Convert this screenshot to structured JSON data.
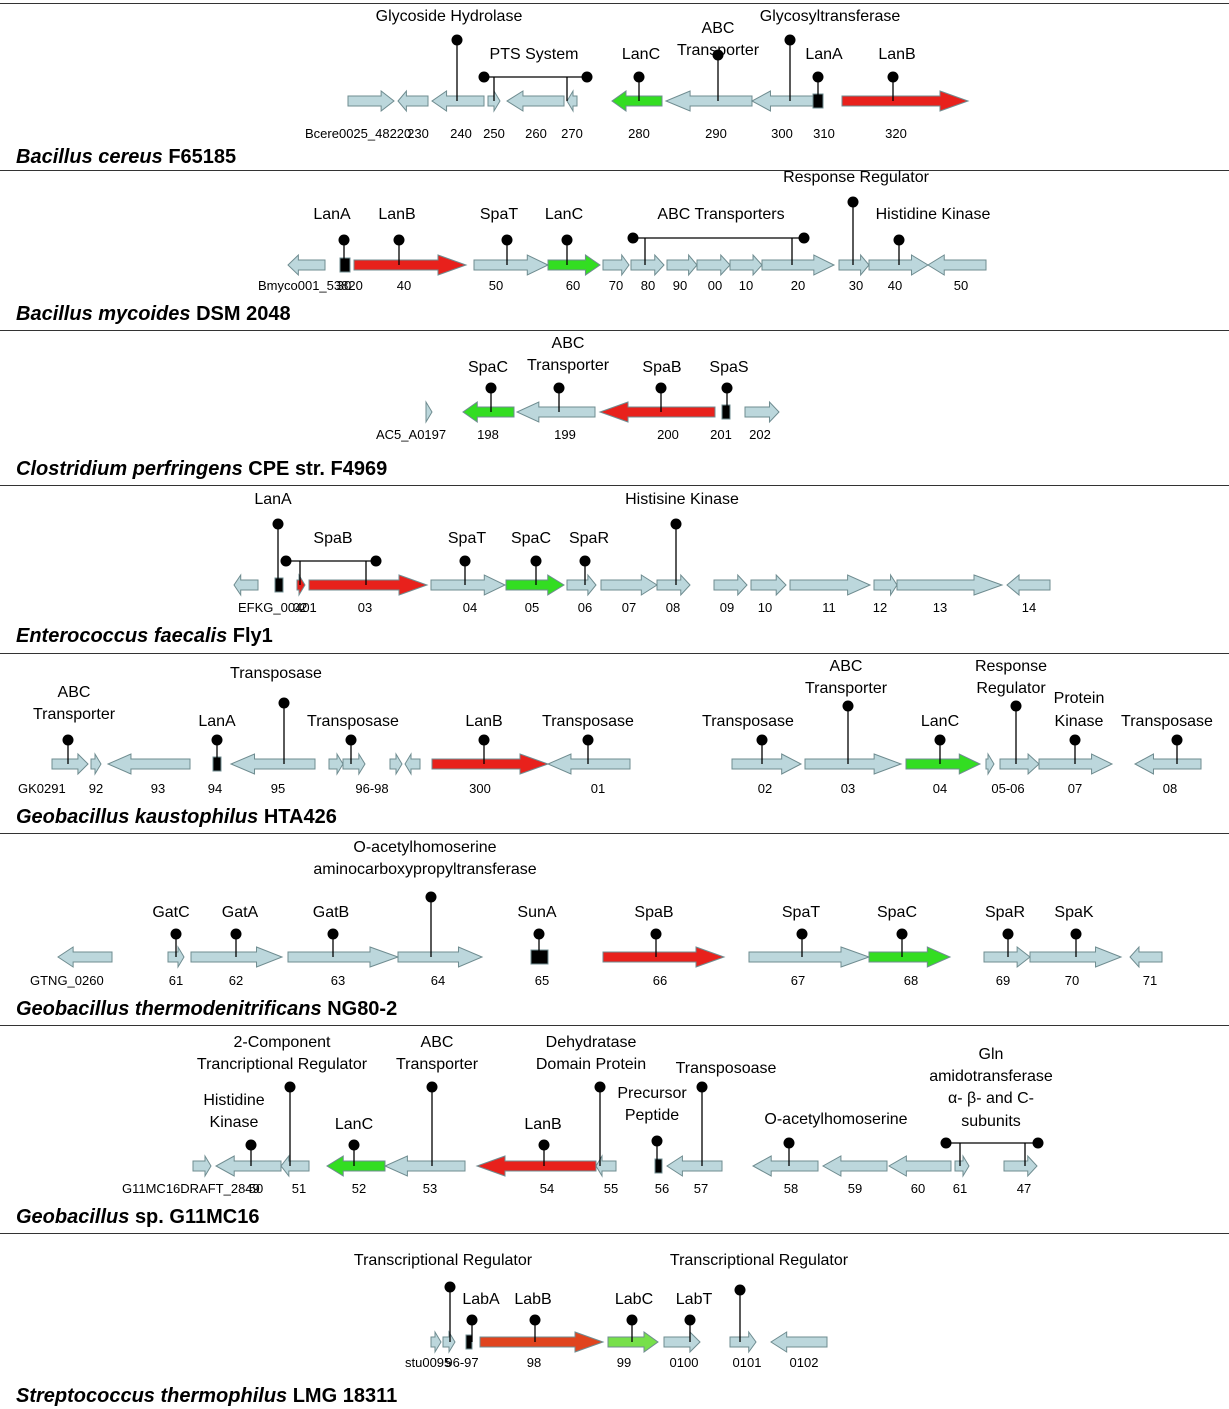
{
  "colors": {
    "default": "#bcd7dc",
    "lanB": "#e8211c",
    "lanC": "#33dd22",
    "small": "#000000",
    "labB": "#e0441e",
    "labC": "#77e04a",
    "pin": "#000000"
  },
  "panels": [
    {
      "organism": {
        "genus": "Bacillus cereus",
        "strain": "F65185"
      },
      "genes": [
        {
          "id": "g1",
          "dir": "r",
          "type": "default"
        },
        {
          "id": "g2",
          "dir": "l",
          "type": "default"
        },
        {
          "id": "g3",
          "dir": "l",
          "type": "default"
        },
        {
          "id": "g4",
          "dir": "r",
          "type": "default"
        },
        {
          "id": "g5",
          "dir": "l",
          "type": "default"
        },
        {
          "id": "g6",
          "dir": "l",
          "type": "default"
        },
        {
          "id": "g7",
          "dir": "l",
          "type": "lanC"
        },
        {
          "id": "g8",
          "dir": "l",
          "type": "default"
        },
        {
          "id": "g9",
          "dir": "l",
          "type": "default"
        },
        {
          "id": "g10",
          "dir": "r",
          "type": "small"
        },
        {
          "id": "g11",
          "dir": "r",
          "type": "lanB"
        }
      ],
      "numbers": [
        "Bcere0025_48220",
        "230",
        "240",
        "250",
        "260",
        "270",
        "280",
        "290",
        "300",
        "310",
        "320"
      ],
      "features": [
        "Glycoside Hydrolase",
        "PTS System",
        "LanC",
        "ABC\nTransporter",
        "Glycosyltransferase",
        "LanA",
        "LanB"
      ]
    },
    {
      "organism": {
        "genus": "Bacillus mycoides",
        "strain": "DSM 2048"
      },
      "genes": [
        {
          "id": "g1",
          "dir": "l",
          "type": "default"
        },
        {
          "id": "g2",
          "dir": "r",
          "type": "small"
        },
        {
          "id": "g3",
          "dir": "r",
          "type": "lanB"
        },
        {
          "id": "g4",
          "dir": "r",
          "type": "default"
        },
        {
          "id": "g5",
          "dir": "r",
          "type": "lanC"
        },
        {
          "id": "g6",
          "dir": "r",
          "type": "default"
        },
        {
          "id": "g7",
          "dir": "r",
          "type": "default"
        },
        {
          "id": "g8",
          "dir": "r",
          "type": "default"
        },
        {
          "id": "g9",
          "dir": "r",
          "type": "default"
        },
        {
          "id": "g10",
          "dir": "r",
          "type": "default"
        },
        {
          "id": "g11",
          "dir": "r",
          "type": "default"
        },
        {
          "id": "g12",
          "dir": "r",
          "type": "default"
        },
        {
          "id": "g13",
          "dir": "r",
          "type": "default"
        },
        {
          "id": "g14",
          "dir": "l",
          "type": "default"
        }
      ],
      "numbers": [
        "Bmyco001_53820",
        "30",
        "40",
        "50",
        "60",
        "70",
        "80",
        "90",
        "00",
        "10",
        "20",
        "30",
        "40",
        "50"
      ],
      "features": [
        "LanA",
        "LanB",
        "SpaT",
        "LanC",
        "ABC Transporters",
        "Response Regulator",
        "Histidine Kinase"
      ]
    },
    {
      "organism": {
        "genus": "Clostridium perfringens",
        "strain": "CPE str. F4969"
      },
      "genes": [
        {
          "id": "g1",
          "dir": "r",
          "type": "default"
        },
        {
          "id": "g2",
          "dir": "l",
          "type": "lanC"
        },
        {
          "id": "g3",
          "dir": "l",
          "type": "default"
        },
        {
          "id": "g4",
          "dir": "l",
          "type": "lanB"
        },
        {
          "id": "g5",
          "dir": "r",
          "type": "small"
        },
        {
          "id": "g6",
          "dir": "r",
          "type": "default"
        }
      ],
      "numbers": [
        "AC5_A0197",
        "198",
        "199",
        "200",
        "201",
        "202"
      ],
      "features": [
        "SpaC",
        "ABC\nTransporter",
        "SpaB",
        "SpaS"
      ]
    },
    {
      "organism": {
        "genus": "Enterococcus faecalis",
        "strain": "Fly1"
      },
      "genes": [
        {
          "id": "g1",
          "dir": "l",
          "type": "default"
        },
        {
          "id": "g2",
          "dir": "r",
          "type": "small"
        },
        {
          "id": "g2b",
          "dir": "r",
          "type": "lanB"
        },
        {
          "id": "g3",
          "dir": "r",
          "type": "lanB"
        },
        {
          "id": "g4",
          "dir": "r",
          "type": "default"
        },
        {
          "id": "g5",
          "dir": "r",
          "type": "lanC"
        },
        {
          "id": "g6",
          "dir": "r",
          "type": "default"
        },
        {
          "id": "g7",
          "dir": "r",
          "type": "default"
        },
        {
          "id": "g8",
          "dir": "r",
          "type": "default"
        },
        {
          "id": "g9",
          "dir": "r",
          "type": "default"
        },
        {
          "id": "g10",
          "dir": "r",
          "type": "default"
        },
        {
          "id": "g11",
          "dir": "r",
          "type": "default"
        },
        {
          "id": "g12",
          "dir": "r",
          "type": "default"
        },
        {
          "id": "g13",
          "dir": "r",
          "type": "default"
        },
        {
          "id": "g14",
          "dir": "l",
          "type": "default"
        }
      ],
      "numbers": [
        "EFKG_00401",
        "02",
        "03",
        "04",
        "05",
        "06",
        "07",
        "08",
        "09",
        "10",
        "11",
        "12",
        "13",
        "14"
      ],
      "features": [
        "LanA",
        "SpaB",
        "SpaT",
        "SpaC",
        "SpaR",
        "Histisine Kinase"
      ]
    },
    {
      "organism": {
        "genus": "Geobacillus kaustophilus",
        "strain": "HTA426"
      },
      "genes": [
        {
          "id": "g1",
          "dir": "r",
          "type": "default"
        },
        {
          "id": "g2",
          "dir": "r",
          "type": "default"
        },
        {
          "id": "g3",
          "dir": "l",
          "type": "default"
        },
        {
          "id": "g4",
          "dir": "r",
          "type": "small"
        },
        {
          "id": "g5",
          "dir": "l",
          "type": "default"
        },
        {
          "id": "g6",
          "dir": "r",
          "type": "default"
        },
        {
          "id": "g7",
          "dir": "r",
          "type": "default"
        },
        {
          "id": "g8",
          "dir": "r",
          "type": "default"
        },
        {
          "id": "g9",
          "dir": "l",
          "type": "default"
        },
        {
          "id": "g10",
          "dir": "r",
          "type": "lanB"
        },
        {
          "id": "g11",
          "dir": "l",
          "type": "default"
        },
        {
          "id": "g12",
          "dir": "r",
          "type": "default"
        },
        {
          "id": "g13",
          "dir": "r",
          "type": "default"
        },
        {
          "id": "g14",
          "dir": "r",
          "type": "lanC"
        },
        {
          "id": "g15",
          "dir": "r",
          "type": "default"
        },
        {
          "id": "g16",
          "dir": "r",
          "type": "default"
        },
        {
          "id": "g17",
          "dir": "r",
          "type": "default"
        },
        {
          "id": "g18",
          "dir": "l",
          "type": "default"
        }
      ],
      "numbers": [
        "GK0291",
        "92",
        "93",
        "94",
        "95",
        "96-98",
        "300",
        "01",
        "02",
        "03",
        "04",
        "05-06",
        "07",
        "08"
      ],
      "features": [
        "ABC\nTransporter",
        "LanA",
        "Transposase",
        "Transposase",
        "LanB",
        "Transposase",
        "Transposase",
        "ABC\nTransporter",
        "LanC",
        "Response\nRegulator",
        "Protein\nKinase",
        "Transposase"
      ]
    },
    {
      "organism": {
        "genus": "Geobacillus thermodenitrificans",
        "strain": "NG80-2"
      },
      "genes": [
        {
          "id": "g1",
          "dir": "l",
          "type": "default"
        },
        {
          "id": "g2",
          "dir": "r",
          "type": "default"
        },
        {
          "id": "g3",
          "dir": "r",
          "type": "default"
        },
        {
          "id": "g4",
          "dir": "r",
          "type": "default"
        },
        {
          "id": "g5",
          "dir": "r",
          "type": "default"
        },
        {
          "id": "g6",
          "dir": "r",
          "type": "small"
        },
        {
          "id": "g7",
          "dir": "r",
          "type": "lanB"
        },
        {
          "id": "g8",
          "dir": "r",
          "type": "default"
        },
        {
          "id": "g9",
          "dir": "r",
          "type": "lanC"
        },
        {
          "id": "g10",
          "dir": "r",
          "type": "default"
        },
        {
          "id": "g11",
          "dir": "r",
          "type": "default"
        },
        {
          "id": "g12",
          "dir": "l",
          "type": "default"
        }
      ],
      "numbers": [
        "GTNG_0260",
        "61",
        "62",
        "63",
        "64",
        "65",
        "66",
        "67",
        "68",
        "69",
        "70",
        "71"
      ],
      "features": [
        "GatC",
        "GatA",
        "GatB",
        "O-acetylhomoserine\naminocarboxypropyltransferase",
        "SunA",
        "SpaB",
        "SpaT",
        "SpaC",
        "SpaR",
        "SpaK"
      ]
    },
    {
      "organism": {
        "genus": "Geobacillus",
        "strain": "sp. G11MC16"
      },
      "genes": [
        {
          "id": "g1",
          "dir": "r",
          "type": "default"
        },
        {
          "id": "g2",
          "dir": "l",
          "type": "default"
        },
        {
          "id": "g3",
          "dir": "l",
          "type": "default"
        },
        {
          "id": "g4",
          "dir": "l",
          "type": "lanC"
        },
        {
          "id": "g5",
          "dir": "l",
          "type": "default"
        },
        {
          "id": "g6",
          "dir": "l",
          "type": "lanB"
        },
        {
          "id": "g7",
          "dir": "l",
          "type": "default"
        },
        {
          "id": "g8",
          "dir": "r",
          "type": "small"
        },
        {
          "id": "g9",
          "dir": "l",
          "type": "default"
        },
        {
          "id": "g10",
          "dir": "l",
          "type": "default"
        },
        {
          "id": "g11",
          "dir": "l",
          "type": "default"
        },
        {
          "id": "g12",
          "dir": "l",
          "type": "default"
        },
        {
          "id": "g13",
          "dir": "r",
          "type": "default"
        },
        {
          "id": "g14",
          "dir": "r",
          "type": "default"
        }
      ],
      "numbers": [
        "G11MC16DRAFT_2849",
        "50",
        "51",
        "52",
        "53",
        "54",
        "55",
        "56",
        "57",
        "58",
        "59",
        "60",
        "61",
        "47"
      ],
      "features": [
        "Histidine\nKinase",
        "2-Component\nTrancriptional Regulator",
        "LanC",
        "ABC\nTransporter",
        "LanB",
        "Dehydratase\nDomain Protein",
        "Precursor\nPeptide",
        "Transposoase",
        "O-acetylhomoserine",
        "Gln\namidotransferase\nα- β- and C-\nsubunits"
      ]
    },
    {
      "organism": {
        "genus": "Streptococcus thermophilus",
        "strain": "LMG 18311"
      },
      "genes": [
        {
          "id": "g1",
          "dir": "r",
          "type": "default"
        },
        {
          "id": "g2",
          "dir": "r",
          "type": "default"
        },
        {
          "id": "g3",
          "dir": "r",
          "type": "small"
        },
        {
          "id": "g4",
          "dir": "r",
          "type": "labB"
        },
        {
          "id": "g5",
          "dir": "r",
          "type": "labC"
        },
        {
          "id": "g6",
          "dir": "r",
          "type": "default"
        },
        {
          "id": "g7",
          "dir": "r",
          "type": "default"
        },
        {
          "id": "g8",
          "dir": "l",
          "type": "default"
        }
      ],
      "numbers": [
        "stu0095",
        "96-97",
        "98",
        "99",
        "0100",
        "0101",
        "0102"
      ],
      "features": [
        "Transcriptional Regulator",
        "LabA",
        "LabB",
        "LabC",
        "LabT",
        "Transcriptional Regulator"
      ]
    }
  ]
}
